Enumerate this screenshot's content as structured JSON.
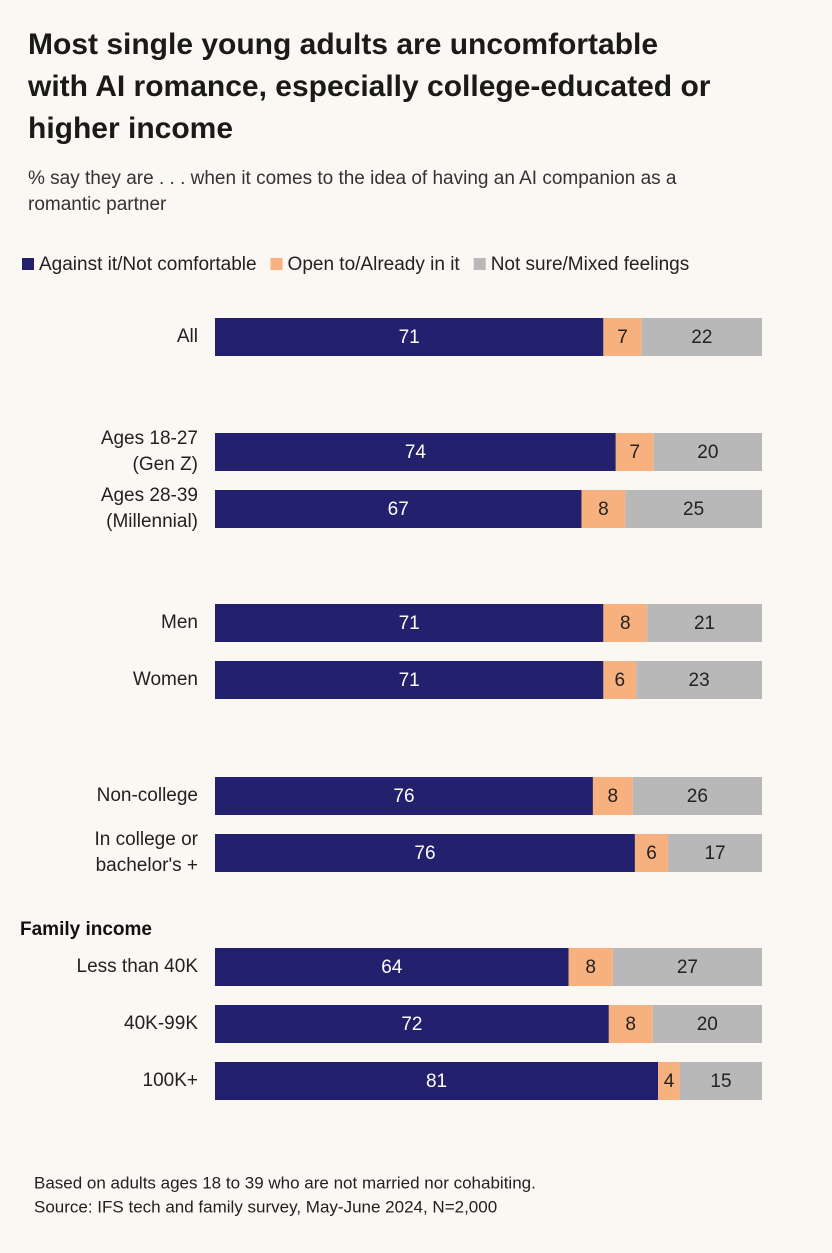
{
  "chart_data": {
    "type": "stacked_barh",
    "title": [
      "Most single young adults are uncomfortable",
      "with AI romance, especially college-educated or",
      "higher income"
    ],
    "subtitle": [
      "% say they are . . . when it comes to the idea of having an AI companion as a",
      "romantic partner"
    ],
    "group_label": "Family income",
    "categories": [
      [
        "All"
      ],
      [
        "Ages 18-27",
        "(Gen Z)"
      ],
      [
        "Ages 28-39",
        "(Millennial)"
      ],
      [
        "Men"
      ],
      [
        "Women"
      ],
      [
        "Non-college"
      ],
      [
        "In college or",
        "bachelor's +"
      ],
      [
        "Less than 40K"
      ],
      [
        "40K-99K"
      ],
      [
        "100K+"
      ]
    ],
    "series": [
      {
        "name": "Against it/Not comfortable",
        "color": "#23206e",
        "values": [
          71,
          74,
          67,
          71,
          71,
          76,
          76,
          64,
          72,
          81
        ]
      },
      {
        "name": "Open to/Already in it",
        "color": "#f6b17e",
        "values": [
          7,
          7,
          8,
          8,
          6,
          8,
          6,
          8,
          8,
          4
        ]
      },
      {
        "name": "Not sure/Mixed feelings",
        "color": "#b8b8b8",
        "values": [
          22,
          20,
          25,
          21,
          23,
          26,
          17,
          27,
          20,
          15
        ]
      }
    ],
    "footnote": [
      "Based on adults ages 18 to 39 who are not married nor cohabiting.",
      "Source: IFS tech and family survey, May-June 2024, N=2,000"
    ]
  }
}
